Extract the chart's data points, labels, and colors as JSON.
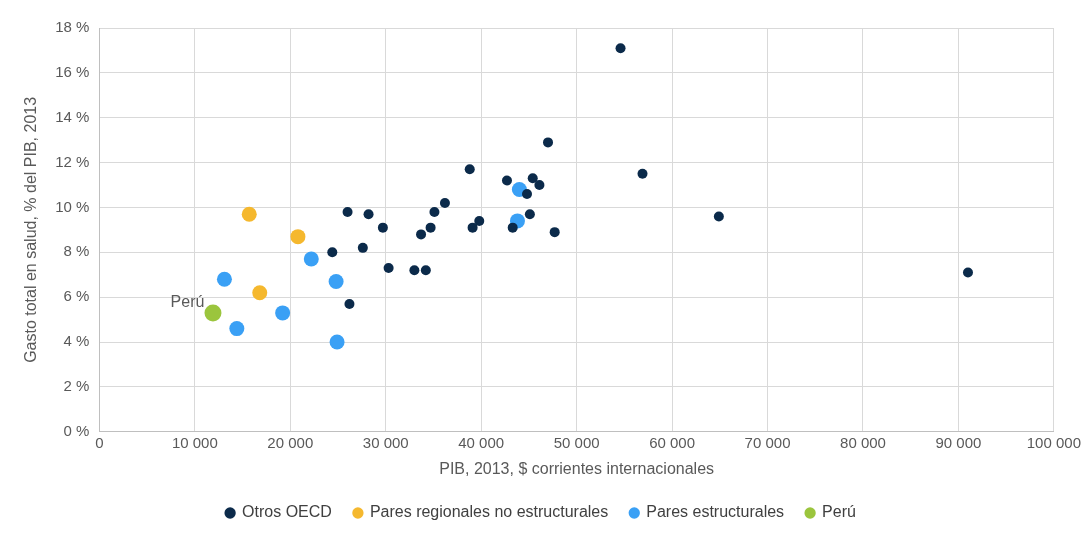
{
  "chart_data": {
    "type": "scatter",
    "xlabel": "PIB, 2013, $ corrientes internacionales",
    "ylabel": "Gasto total en salud, % del PIB, 2013",
    "xlim": [
      0,
      100000
    ],
    "xticks": [
      {
        "value": 0,
        "label": "0"
      },
      {
        "value": 10000,
        "label": "10 000"
      },
      {
        "value": 20000,
        "label": "20 000"
      },
      {
        "value": 30000,
        "label": "30 000"
      },
      {
        "value": 40000,
        "label": "40 000"
      },
      {
        "value": 50000,
        "label": "50 000"
      },
      {
        "value": 60000,
        "label": "60 000"
      },
      {
        "value": 70000,
        "label": "70 000"
      },
      {
        "value": 80000,
        "label": "80 000"
      },
      {
        "value": 90000,
        "label": "90 000"
      },
      {
        "value": 100000,
        "label": "100 000"
      }
    ],
    "ylim": [
      0,
      18
    ],
    "yticks": [
      {
        "value": 0,
        "label": "0 %"
      },
      {
        "value": 2,
        "label": "2 %"
      },
      {
        "value": 4,
        "label": "4 %"
      },
      {
        "value": 6,
        "label": "6 %"
      },
      {
        "value": 8,
        "label": "8 %"
      },
      {
        "value": 10,
        "label": "10 %"
      },
      {
        "value": 12,
        "label": "12 %"
      },
      {
        "value": 14,
        "label": "14 %"
      },
      {
        "value": 16,
        "label": "16 %"
      },
      {
        "value": 18,
        "label": "18 %"
      }
    ],
    "grid": true,
    "legend": "bottom",
    "marker": "circle",
    "annotations": [
      {
        "text": "Perú",
        "x": 11000,
        "y": 5.4
      }
    ],
    "series": [
      {
        "name": "Otros OECD",
        "color": "#0b2a4a",
        "x": [
          54600,
          47000,
          38800,
          42700,
          45400,
          46100,
          44800,
          36200,
          35100,
          26000,
          28200,
          29700,
          39800,
          39100,
          34700,
          33700,
          45100,
          43300,
          47700,
          24400,
          27600,
          30300,
          33000,
          34200,
          26200,
          56900,
          64900,
          91000
        ],
        "values": [
          17.1,
          12.9,
          11.7,
          11.2,
          11.3,
          11.0,
          10.6,
          10.2,
          9.8,
          9.8,
          9.7,
          9.1,
          9.4,
          9.1,
          9.1,
          8.8,
          9.7,
          9.1,
          8.9,
          8.0,
          8.2,
          7.3,
          7.2,
          7.2,
          5.7,
          11.5,
          9.6,
          7.1
        ]
      },
      {
        "name": "Pares regionales no estructurales",
        "color": "#f5b82e",
        "x": [
          15700,
          20800,
          16800
        ],
        "values": [
          9.7,
          8.7,
          6.2
        ]
      },
      {
        "name": "Pares estructurales",
        "color": "#3aa0f5",
        "x": [
          22200,
          13100,
          24800,
          19200,
          14400,
          24900,
          44000,
          43800
        ],
        "values": [
          7.7,
          6.8,
          6.7,
          5.3,
          4.6,
          4.0,
          10.8,
          9.4
        ]
      },
      {
        "name": "Perú",
        "color": "#9bc53d",
        "x": [
          11900
        ],
        "values": [
          5.3
        ]
      }
    ]
  }
}
